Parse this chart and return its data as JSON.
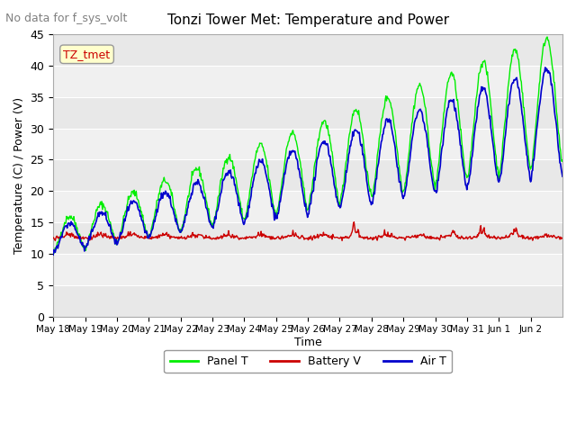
{
  "title": "Tonzi Tower Met: Temperature and Power",
  "subtitle": "No data for f_sys_volt",
  "ylabel": "Temperature (C) / Power (V)",
  "xlabel": "Time",
  "ylim": [
    0,
    45
  ],
  "yticks": [
    0,
    5,
    10,
    15,
    20,
    25,
    30,
    35,
    40,
    45
  ],
  "xtick_labels": [
    "May 18",
    "May 19",
    "May 20",
    "May 21",
    "May 22",
    "May 23",
    "May 24",
    "May 25",
    "May 26",
    "May 27",
    "May 28",
    "May 29",
    "May 30",
    "May 31",
    "Jun 1",
    "Jun 2"
  ],
  "legend_labels": [
    "Panel T",
    "Battery V",
    "Air T"
  ],
  "legend_colors": [
    "#00ee00",
    "#cc0000",
    "#0000cc"
  ],
  "panel_color": "#00ee00",
  "battery_color": "#cc0000",
  "air_color": "#0000cc",
  "annotation_text": "TZ_tmet",
  "annotation_color": "#cc0000",
  "annotation_bg": "#ffffcc",
  "n_days": 16,
  "samples_per_day": 48
}
